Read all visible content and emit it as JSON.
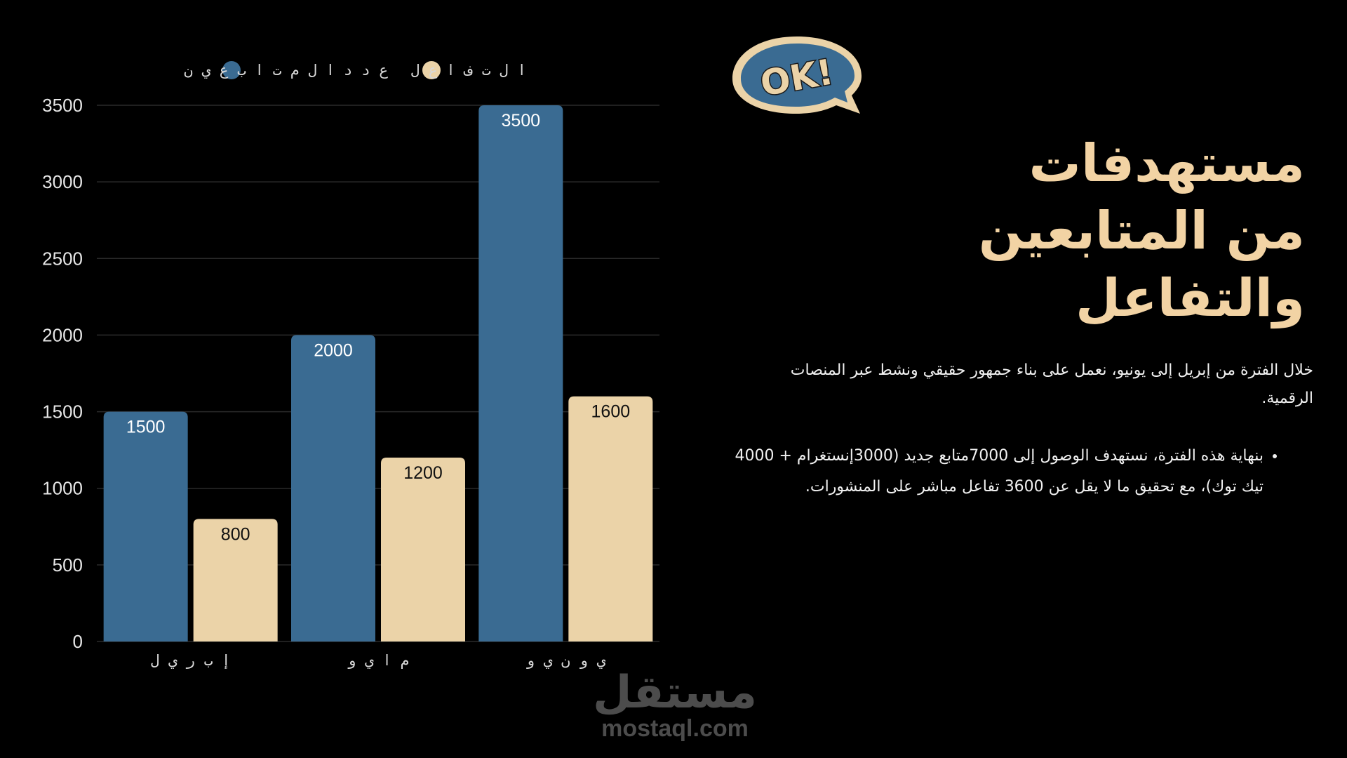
{
  "chart_data": {
    "type": "bar",
    "categories": [
      "إ ب ر ي ل",
      "م ا ي و",
      "ي و ن ي و"
    ],
    "series": [
      {
        "name": "ع د د  ا ل م ت ا ب ع ي ن",
        "values": [
          1500,
          2000,
          3500
        ],
        "color": "#3a6b92"
      },
      {
        "name": "ا ل ت ف ا ع ل",
        "values": [
          800,
          1200,
          1600
        ],
        "color": "#ebd3a8"
      }
    ],
    "yticks": [
      "0",
      "500",
      "1000",
      "1500",
      "2000",
      "2500",
      "3000",
      "3500"
    ],
    "ylim": [
      0,
      3500
    ],
    "grid": true,
    "legend": "top",
    "data_labels": true
  },
  "badge": {
    "text": "OK!"
  },
  "title": {
    "line1": "مستهدفات",
    "line2": "من المتابعين والتفاعل"
  },
  "body": {
    "paragraph": "خلال الفترة من إبريل إلى يونيو، نعمل على بناء جمهور حقيقي ونشط عبر المنصات الرقمية."
  },
  "bullets": [
    "بنهاية هذه الفترة، نستهدف الوصول إلى 7000متابع جديد (3000إنستغرام + 4000 تيك توك)، مع تحقيق ما لا يقل عن 3600 تفاعل مباشر على المنشورات."
  ],
  "watermark": {
    "arabic": "مستقل",
    "latin": "mostaql.com"
  },
  "colors": {
    "background": "#000000",
    "accent": "#f2d3a4",
    "series_blue": "#3a6b92",
    "series_cream": "#ebd3a8"
  }
}
